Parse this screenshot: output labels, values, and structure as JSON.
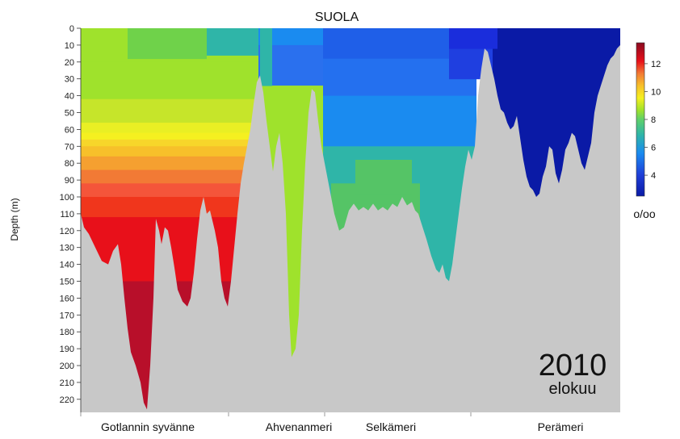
{
  "chart_data": {
    "type": "heatmap",
    "title": "SUOLA",
    "ylabel": "Depth (m)",
    "ylim": [
      0,
      227
    ],
    "y_ticks": [
      0,
      10,
      20,
      30,
      40,
      50,
      60,
      70,
      80,
      90,
      100,
      110,
      120,
      130,
      140,
      150,
      160,
      170,
      180,
      190,
      200,
      210,
      220
    ],
    "y_inverted": true,
    "regions": [
      "Gotlannin syvänne",
      "Ahvenanmeri",
      "Selkämeri",
      "Perämeri"
    ],
    "colorbar": {
      "min": 2.5,
      "max": 13.5,
      "ticks": [
        4,
        6,
        8,
        10,
        12
      ],
      "unit": "o/oo"
    },
    "annotation": {
      "year": "2010",
      "month": "elokuu"
    },
    "grid": false,
    "legend": "right",
    "salinity_layers": [
      {
        "region": "Gotlannin syvänne",
        "depths": [
          0,
          20,
          40,
          60,
          70,
          80,
          90,
          100,
          110,
          120,
          150
        ],
        "values": [
          7.5,
          7.3,
          7.6,
          8.2,
          8.8,
          9.6,
          10.3,
          10.8,
          11.3,
          11.8,
          12.8
        ]
      },
      {
        "region": "Ahvenanmeri",
        "depths": [
          0,
          10,
          35
        ],
        "values": [
          5.6,
          5.0,
          7.4
        ]
      },
      {
        "region": "Selkämeri",
        "depths": [
          0,
          20,
          70,
          90
        ],
        "values": [
          5.0,
          5.3,
          6.0,
          6.6
        ]
      },
      {
        "region": "Perämeri",
        "depths": [
          0,
          30
        ],
        "values": [
          4.0,
          3.3
        ]
      }
    ],
    "colors": {
      "seabed": "#c8c8c8",
      "s12_13": "#b80f2a",
      "s11_12": "#e8101a",
      "s10_11": "#f0361c",
      "s9_10": "#f27a35",
      "s8_9": "#f7c02a",
      "s7_8": "#9fe22c",
      "s6_7": "#2fb5a8",
      "s5_6": "#1a8bf0",
      "s4_5": "#1f5fe8",
      "s3_4": "#0a1aa6"
    }
  }
}
